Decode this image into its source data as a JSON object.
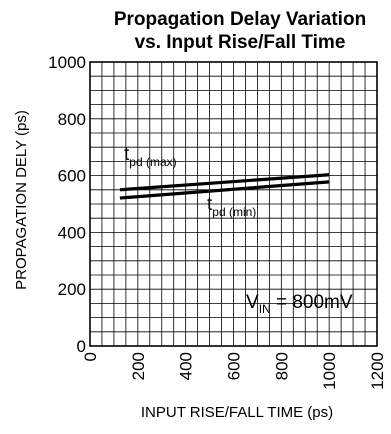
{
  "chart_data": {
    "type": "line",
    "title_lines": [
      "Propagation Delay Variation",
      "vs. Input Rise/Fall Time"
    ],
    "xlabel": "INPUT RISE/FALL TIME (ps)",
    "ylabel": "PROPAGATION DELY (ps)",
    "xlim": [
      0,
      1200
    ],
    "ylim": [
      0,
      1000
    ],
    "x_ticks": [
      0,
      200,
      400,
      600,
      800,
      1000,
      1200
    ],
    "y_ticks": [
      0,
      200,
      400,
      600,
      800,
      1000
    ],
    "x_tick_labels": [
      "0",
      "200",
      "400",
      "600",
      "800",
      "1000",
      "1200"
    ],
    "y_tick_labels": [
      "0",
      "200",
      "400",
      "600",
      "800",
      "1000"
    ],
    "grid": true,
    "grid_minor_x_step": 50,
    "grid_minor_y_step": 50,
    "series": [
      {
        "x": [
          125,
          1000
        ],
        "y": [
          550,
          603
        ]
      },
      {
        "x": [
          125,
          1000
        ],
        "y": [
          521,
          578
        ]
      }
    ],
    "annotations": [
      {
        "main": "t",
        "sub": "pd (max)"
      },
      {
        "main": "t",
        "sub": "pd (min)"
      },
      {
        "main": "V",
        "sub": "IN",
        "suffix": " = 800mV"
      }
    ]
  }
}
